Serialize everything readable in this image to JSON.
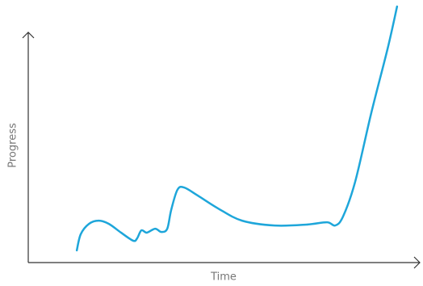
{
  "chart_data": {
    "type": "line",
    "x_label": "Time",
    "y_label": "Progress",
    "xlim": [
      0,
      100
    ],
    "ylim": [
      0,
      100
    ],
    "x": [
      12.4,
      13.4,
      15.5,
      18.0,
      20.6,
      23.7,
      26.8,
      27.8,
      28.9,
      30.3,
      32.4,
      34.0,
      35.5,
      36.5,
      38.1,
      39.8,
      43.3,
      48.5,
      54.6,
      62.9,
      71.1,
      76.3,
      78.4,
      80.4,
      83.5,
      87.6,
      91.8,
      94.2
    ],
    "series": [
      {
        "color": "#1ea6da",
        "values": [
          5.3,
          12.3,
          16.8,
          18.2,
          16.8,
          13.0,
          9.5,
          10.5,
          14.0,
          13.0,
          14.7,
          13.3,
          14.7,
          22.8,
          31.6,
          32.6,
          29.1,
          23.5,
          18.2,
          16.1,
          16.5,
          17.5,
          16.1,
          20.0,
          35.1,
          64.9,
          93.0,
          111.2
        ]
      }
    ]
  }
}
